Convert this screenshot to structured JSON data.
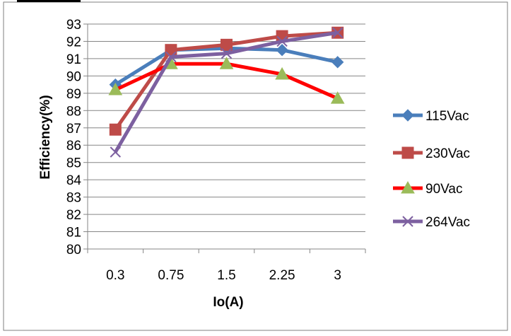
{
  "chart_data": {
    "type": "line",
    "title": "",
    "xlabel": "Io(A)",
    "ylabel": "Efficiency(%)",
    "categories": [
      "0.3",
      "0.75",
      "1.5",
      "2.25",
      "3"
    ],
    "ylim": [
      80,
      93
    ],
    "yticks": [
      "80",
      "81",
      "82",
      "83",
      "84",
      "85",
      "86",
      "87",
      "88",
      "89",
      "90",
      "91",
      "92",
      "93"
    ],
    "grid": true,
    "legend_position": "right",
    "series": [
      {
        "name": "115Vac",
        "color": "#4a7ebb",
        "marker": "diamond",
        "values": [
          89.5,
          91.5,
          91.6,
          91.5,
          90.8
        ]
      },
      {
        "name": "230Vac",
        "color": "#be4b48",
        "marker": "square",
        "values": [
          86.9,
          91.5,
          91.8,
          92.3,
          92.5
        ]
      },
      {
        "name": "90Vac",
        "color": "#ff0000",
        "marker": "triangle",
        "marker_color": "#9bbb59",
        "values": [
          89.2,
          90.7,
          90.7,
          90.1,
          88.7
        ]
      },
      {
        "name": "264Vac",
        "color": "#7d60a0",
        "marker": "x",
        "values": [
          85.6,
          91.1,
          91.3,
          92.0,
          92.5
        ]
      }
    ]
  }
}
